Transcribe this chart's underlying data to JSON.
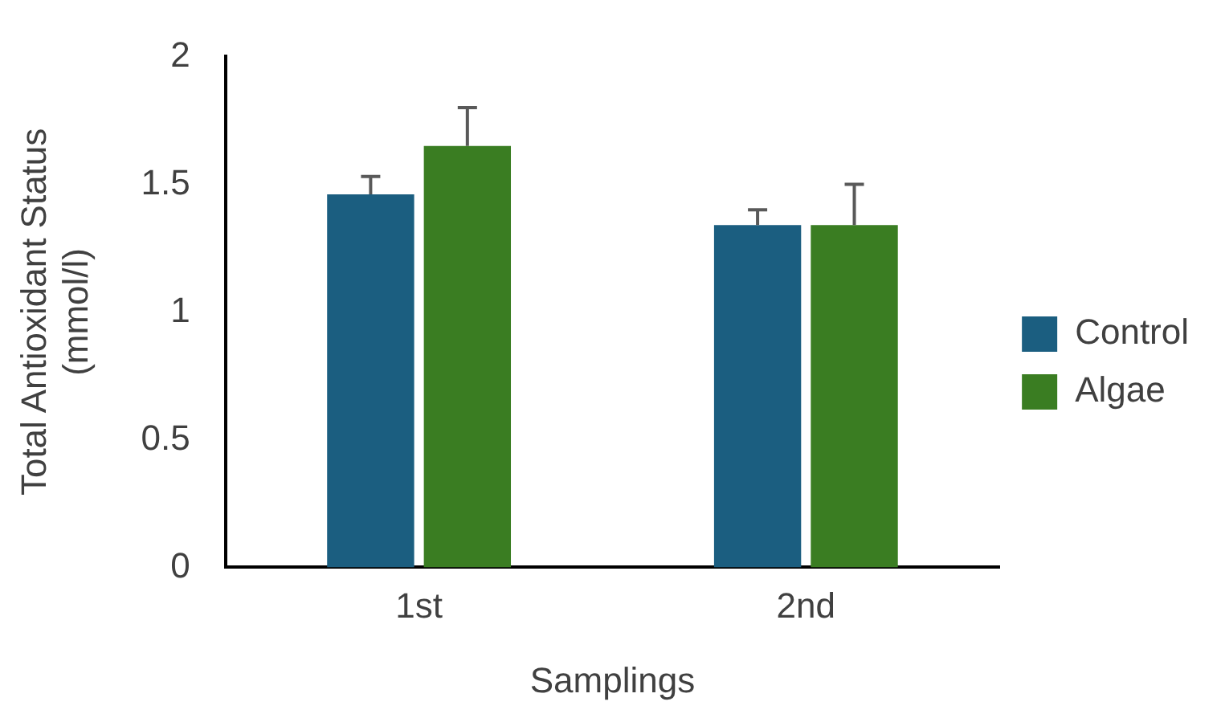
{
  "chart_data": {
    "type": "bar",
    "xlabel": "Samplings",
    "ylabel": "Total Antioxidant Status (mmol/l)",
    "categories": [
      "1st",
      "2nd"
    ],
    "series": [
      {
        "name": "Control",
        "color": "#1b5e80",
        "values": [
          1.46,
          1.34
        ],
        "errors": [
          [
            1.46,
            1.53
          ],
          [
            1.34,
            1.4
          ]
        ]
      },
      {
        "name": "Algae",
        "color": "#3a7d22",
        "values": [
          1.65,
          1.34
        ],
        "errors": [
          [
            1.65,
            1.8
          ],
          [
            1.34,
            1.5
          ]
        ]
      }
    ],
    "ylim": [
      0,
      2
    ],
    "yticks": [
      0,
      0.5,
      1,
      1.5,
      2
    ],
    "grid": false,
    "legend": "right"
  }
}
